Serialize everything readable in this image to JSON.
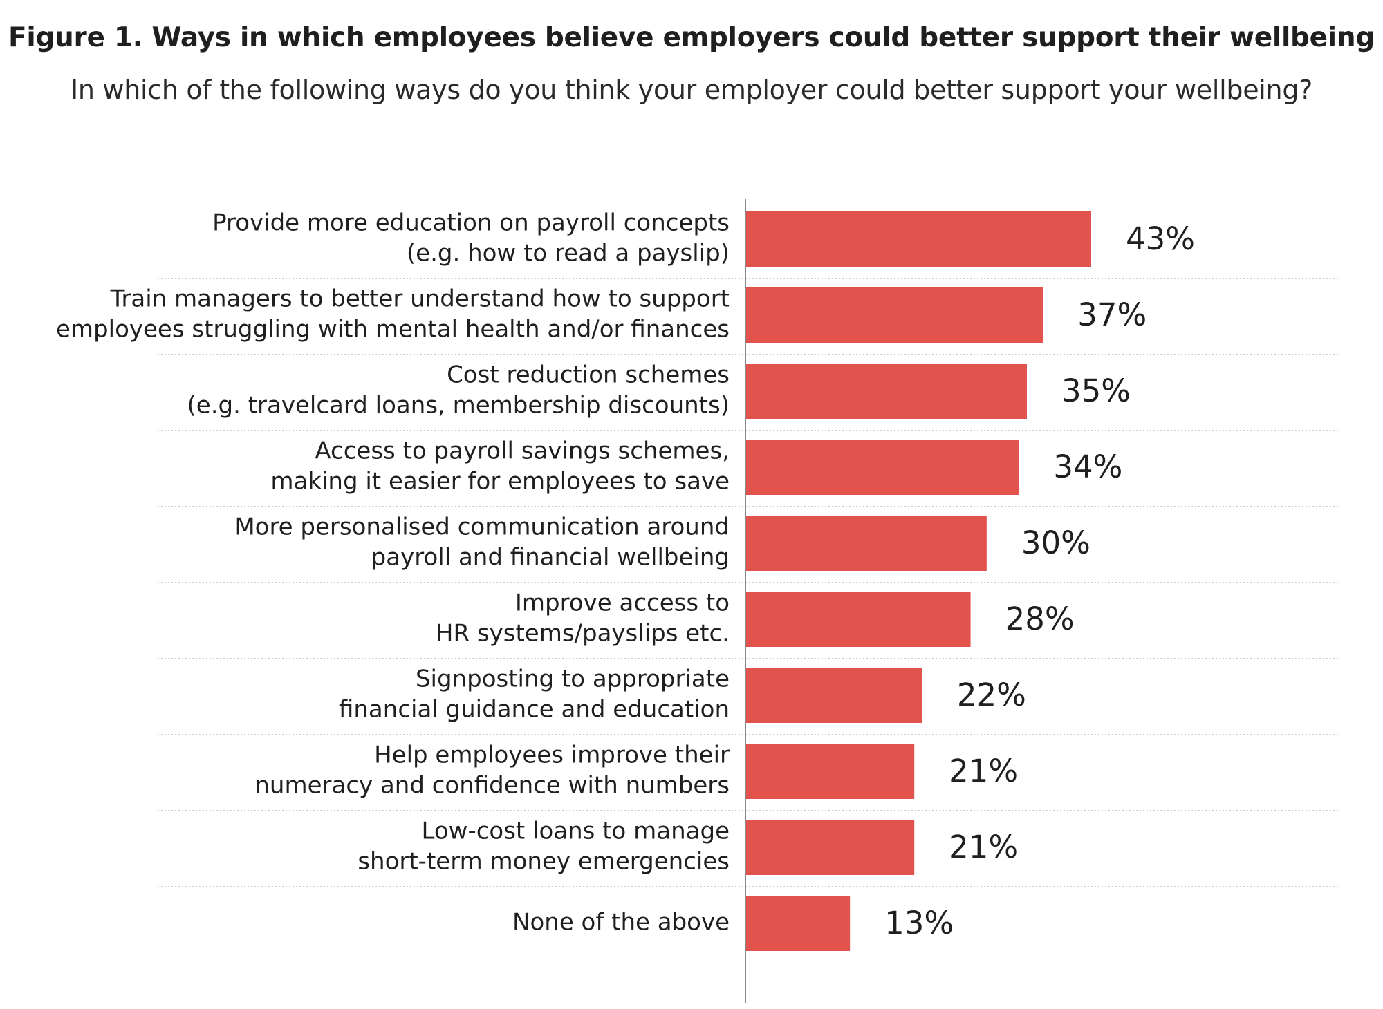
{
  "title": "Figure 1. Ways in which employees believe employers could better support their  wellbeing",
  "subtitle": "In which of the following ways do you think your employer could better support your wellbeing?",
  "colors": {
    "bar": "#e3534d",
    "axis": "#8a8a8a",
    "separator": "#b5b5b5",
    "text": "#1f1f1f"
  },
  "chart_data": {
    "type": "bar",
    "orientation": "horizontal",
    "title": "Figure 1. Ways in which employees believe employers could better support their  wellbeing",
    "subtitle": "In which of the following ways do you think your employer could better support your wellbeing?",
    "xlabel": "",
    "ylabel": "",
    "unit": "%",
    "xlim": [
      0,
      43
    ],
    "grid": false,
    "legend": "none",
    "categories": [
      [
        "Provide more education on payroll concepts",
        "(e.g. how to read a payslip)"
      ],
      [
        "Train managers to better understand how to support",
        "employees struggling with mental health and/or finances"
      ],
      [
        "Cost reduction schemes",
        "(e.g. travelcard loans, membership discounts)"
      ],
      [
        "Access to payroll savings schemes,",
        "making it easier for employees to save"
      ],
      [
        "More personalised communication around",
        "payroll and financial wellbeing"
      ],
      [
        "Improve access to",
        "HR systems/payslips etc."
      ],
      [
        "Signposting to appropriate",
        "financial guidance and education"
      ],
      [
        "Help employees improve their",
        "numeracy and confidence with numbers"
      ],
      [
        "Low-cost loans to manage",
        "short-term money emergencies"
      ],
      [
        "None of the above"
      ]
    ],
    "values": [
      43,
      37,
      35,
      34,
      30,
      28,
      22,
      21,
      21,
      13
    ],
    "value_labels": [
      "43%",
      "37%",
      "35%",
      "34%",
      "30%",
      "28%",
      "22%",
      "21%",
      "21%",
      "13%"
    ]
  }
}
